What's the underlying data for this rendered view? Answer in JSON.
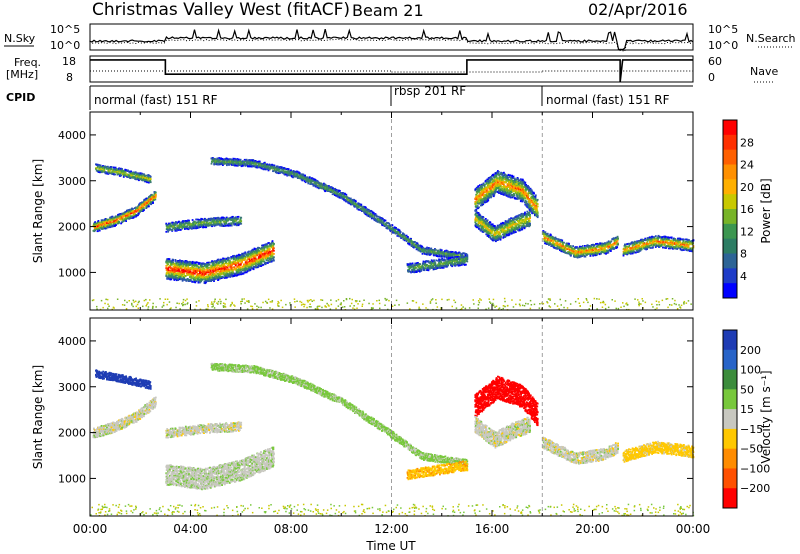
{
  "header": {
    "station": "Christmas Valley West (fitACF)",
    "beam": "Beam 21",
    "date": "02/Apr/2016"
  },
  "sky_panel": {
    "left_label": "N.Sky",
    "right_label": "N.Search",
    "ticks": [
      "10^5",
      "10^0"
    ]
  },
  "freq_panel": {
    "label_line1": "Freq.",
    "label_line2": "[MHz]",
    "left_ticks": [
      "18",
      "8"
    ],
    "right_ticks": [
      "60",
      "0"
    ],
    "right_label": "Nave"
  },
  "cpid": {
    "label": "CPID",
    "segments": [
      {
        "text": "normal (fast) 151 RF",
        "start_hour": 0
      },
      {
        "text": "rbsp 201 RF",
        "start_hour": 12
      },
      {
        "text": "normal (fast) 151 RF",
        "start_hour": 18
      }
    ]
  },
  "colorbars": {
    "power": {
      "title": "Power [dB]",
      "ticks": [
        "28",
        "24",
        "20",
        "16",
        "12",
        "8",
        "4"
      ]
    },
    "velocity": {
      "title": "Velocity [m s⁻¹]",
      "ticks": [
        "200",
        "100",
        "50",
        "15",
        "−15",
        "−50",
        "−100",
        "−200"
      ]
    }
  },
  "chart_data": [
    {
      "type": "heatmap",
      "name": "power",
      "ylabel": "Slant Range [km]",
      "ylim": [
        180,
        4500
      ],
      "xlim_hours": [
        0,
        24
      ],
      "yticks": [
        "4000",
        "3000",
        "2000",
        "1000"
      ],
      "scatter_bands": [
        {
          "range": [
            [
              0.1,
              2000
            ],
            [
              1.0,
              2150
            ],
            [
              1.8,
              2350
            ],
            [
              2.6,
              2700
            ]
          ],
          "width": 160,
          "peak": 26
        },
        {
          "range": [
            [
              0.2,
              3300
            ],
            [
              1.2,
              3200
            ],
            [
              2.4,
              3050
            ]
          ],
          "width": 120,
          "peak": 18
        },
        {
          "range": [
            [
              3.0,
              1100
            ],
            [
              4.5,
              1000
            ],
            [
              6.0,
              1200
            ],
            [
              7.3,
              1500
            ]
          ],
          "width": 320,
          "peak": 28
        },
        {
          "range": [
            [
              3.0,
              2000
            ],
            [
              4.5,
              2100
            ],
            [
              6.0,
              2150
            ]
          ],
          "width": 140,
          "peak": 14
        },
        {
          "range": [
            [
              4.8,
              3450
            ],
            [
              6.5,
              3400
            ],
            [
              8.2,
              3150
            ],
            [
              10.0,
              2700
            ],
            [
              11.8,
              2050
            ],
            [
              13.2,
              1500
            ],
            [
              15.0,
              1350
            ]
          ],
          "width": 110,
          "peak": 12
        },
        {
          "range": [
            [
              12.6,
              1100
            ],
            [
              13.8,
              1200
            ],
            [
              15.0,
              1300
            ]
          ],
          "width": 150,
          "peak": 13
        },
        {
          "range": [
            [
              15.3,
              2600
            ],
            [
              16.2,
              3000
            ],
            [
              17.2,
              2800
            ],
            [
              17.8,
              2400
            ]
          ],
          "width": 350,
          "peak": 24
        },
        {
          "range": [
            [
              15.3,
              2200
            ],
            [
              16.1,
              1850
            ],
            [
              16.8,
              2050
            ],
            [
              17.5,
              2200
            ]
          ],
          "width": 250,
          "peak": 20
        },
        {
          "range": [
            [
              18.0,
              1800
            ],
            [
              19.3,
              1450
            ],
            [
              20.5,
              1550
            ],
            [
              21.0,
              1700
            ]
          ],
          "width": 180,
          "peak": 24
        },
        {
          "range": [
            [
              21.2,
              1500
            ],
            [
              22.5,
              1700
            ],
            [
              24.0,
              1600
            ]
          ],
          "width": 180,
          "peak": 24
        }
      ]
    },
    {
      "type": "heatmap",
      "name": "velocity",
      "ylabel": "Slant Range [km]",
      "ylim": [
        180,
        4500
      ],
      "xlim_hours": [
        0,
        24
      ],
      "yticks": [
        "4000",
        "3000",
        "2000",
        "1000"
      ],
      "xlabel": "Time UT",
      "xticks": [
        "00:00",
        "04:00",
        "08:00",
        "12:00",
        "16:00",
        "20:00",
        "00:00"
      ],
      "scatter_bands": [
        {
          "range": [
            [
              0.1,
              2000
            ],
            [
              1.0,
              2150
            ],
            [
              1.8,
              2350
            ],
            [
              2.6,
              2700
            ]
          ],
          "width": 160,
          "vel": 0
        },
        {
          "range": [
            [
              0.2,
              3300
            ],
            [
              1.2,
              3200
            ],
            [
              2.4,
              3050
            ]
          ],
          "width": 120,
          "vel": 180
        },
        {
          "range": [
            [
              3.0,
              1100
            ],
            [
              4.5,
              1000
            ],
            [
              6.0,
              1200
            ],
            [
              7.3,
              1500
            ]
          ],
          "width": 320,
          "vel": 5
        },
        {
          "range": [
            [
              3.0,
              2000
            ],
            [
              4.5,
              2100
            ],
            [
              6.0,
              2150
            ]
          ],
          "width": 140,
          "vel": 0
        },
        {
          "range": [
            [
              4.8,
              3450
            ],
            [
              6.5,
              3400
            ],
            [
              8.2,
              3150
            ],
            [
              10.0,
              2700
            ],
            [
              11.8,
              2050
            ],
            [
              13.2,
              1500
            ],
            [
              15.0,
              1350
            ]
          ],
          "width": 110,
          "vel": 25
        },
        {
          "range": [
            [
              12.6,
              1100
            ],
            [
              13.8,
              1200
            ],
            [
              15.0,
              1300
            ]
          ],
          "width": 150,
          "vel": -40
        },
        {
          "range": [
            [
              15.3,
              2600
            ],
            [
              16.2,
              3000
            ],
            [
              17.2,
              2800
            ],
            [
              17.8,
              2400
            ]
          ],
          "width": 350,
          "vel": -220
        },
        {
          "range": [
            [
              15.3,
              2200
            ],
            [
              16.1,
              1850
            ],
            [
              16.8,
              2050
            ],
            [
              17.5,
              2200
            ]
          ],
          "width": 250,
          "vel": 0
        },
        {
          "range": [
            [
              18.0,
              1800
            ],
            [
              19.3,
              1450
            ],
            [
              20.5,
              1550
            ],
            [
              21.0,
              1700
            ]
          ],
          "width": 180,
          "vel": 0
        },
        {
          "range": [
            [
              21.2,
              1500
            ],
            [
              22.5,
              1700
            ],
            [
              24.0,
              1600
            ]
          ],
          "width": 180,
          "vel": -30
        }
      ]
    }
  ]
}
